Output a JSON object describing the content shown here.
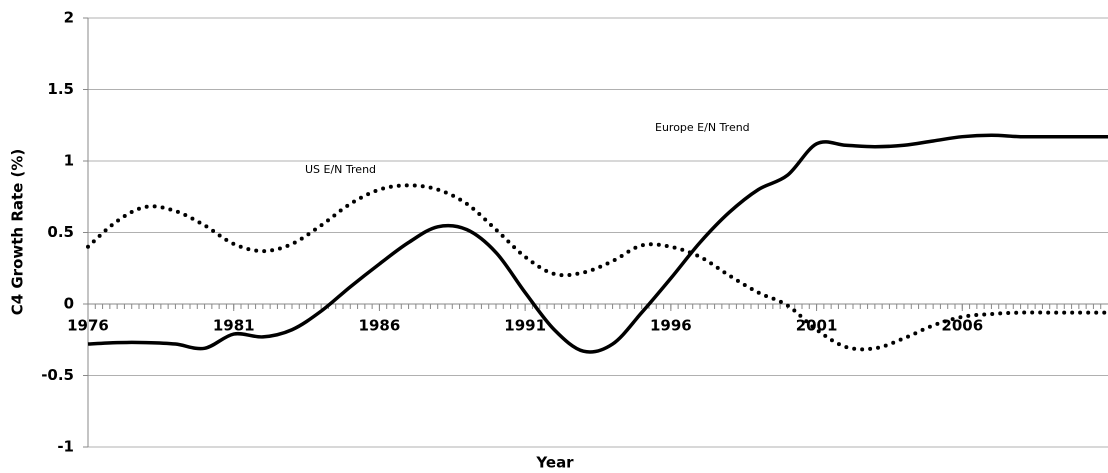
{
  "chart_data": {
    "type": "line",
    "y_label": "C4 Growth Rate (%)",
    "x_label": "Year",
    "annotations": [
      "US E/N Trend",
      "Europe E/N Trend"
    ],
    "x": [
      1976,
      1977,
      1978,
      1979,
      1980,
      1981,
      1982,
      1983,
      1984,
      1985,
      1986,
      1987,
      1988,
      1989,
      1990,
      1991,
      1992,
      1993,
      1994,
      1995,
      1996,
      1997,
      1998,
      1999,
      2000,
      2001,
      2002,
      2003,
      2004,
      2005,
      2006,
      2007,
      2008,
      2009,
      2010,
      2011
    ],
    "series": [
      {
        "name": "US E/N Trend",
        "color": "#000000",
        "dash": "dotted",
        "values": [
          0.4,
          0.58,
          0.68,
          0.65,
          0.55,
          0.42,
          0.37,
          0.42,
          0.55,
          0.7,
          0.8,
          0.83,
          0.8,
          0.7,
          0.52,
          0.33,
          0.21,
          0.22,
          0.3,
          0.41,
          0.4,
          0.33,
          0.2,
          0.08,
          -0.01,
          -0.18,
          -0.3,
          -0.31,
          -0.24,
          -0.15,
          -0.09,
          -0.07,
          -0.06,
          -0.06,
          -0.06,
          -0.06
        ]
      },
      {
        "name": "Europe E/N Trend",
        "color": "#000000",
        "dash": "solid",
        "values": [
          -0.28,
          -0.27,
          -0.27,
          -0.28,
          -0.31,
          -0.21,
          -0.23,
          -0.18,
          -0.05,
          0.12,
          0.28,
          0.43,
          0.54,
          0.52,
          0.36,
          0.08,
          -0.18,
          -0.33,
          -0.28,
          -0.06,
          0.18,
          0.43,
          0.64,
          0.8,
          0.9,
          1.12,
          1.11,
          1.1,
          1.11,
          1.14,
          1.17,
          1.18,
          1.17,
          1.17,
          1.17,
          1.17
        ]
      }
    ],
    "xlim": [
      1976,
      2011
    ],
    "xticks": [
      1976,
      1981,
      1986,
      1991,
      1996,
      2001,
      2006
    ],
    "ylim": [
      -1,
      2
    ],
    "yticks": [
      2,
      1.5,
      1,
      0.5,
      0,
      -0.5,
      -1
    ],
    "grid": true
  }
}
